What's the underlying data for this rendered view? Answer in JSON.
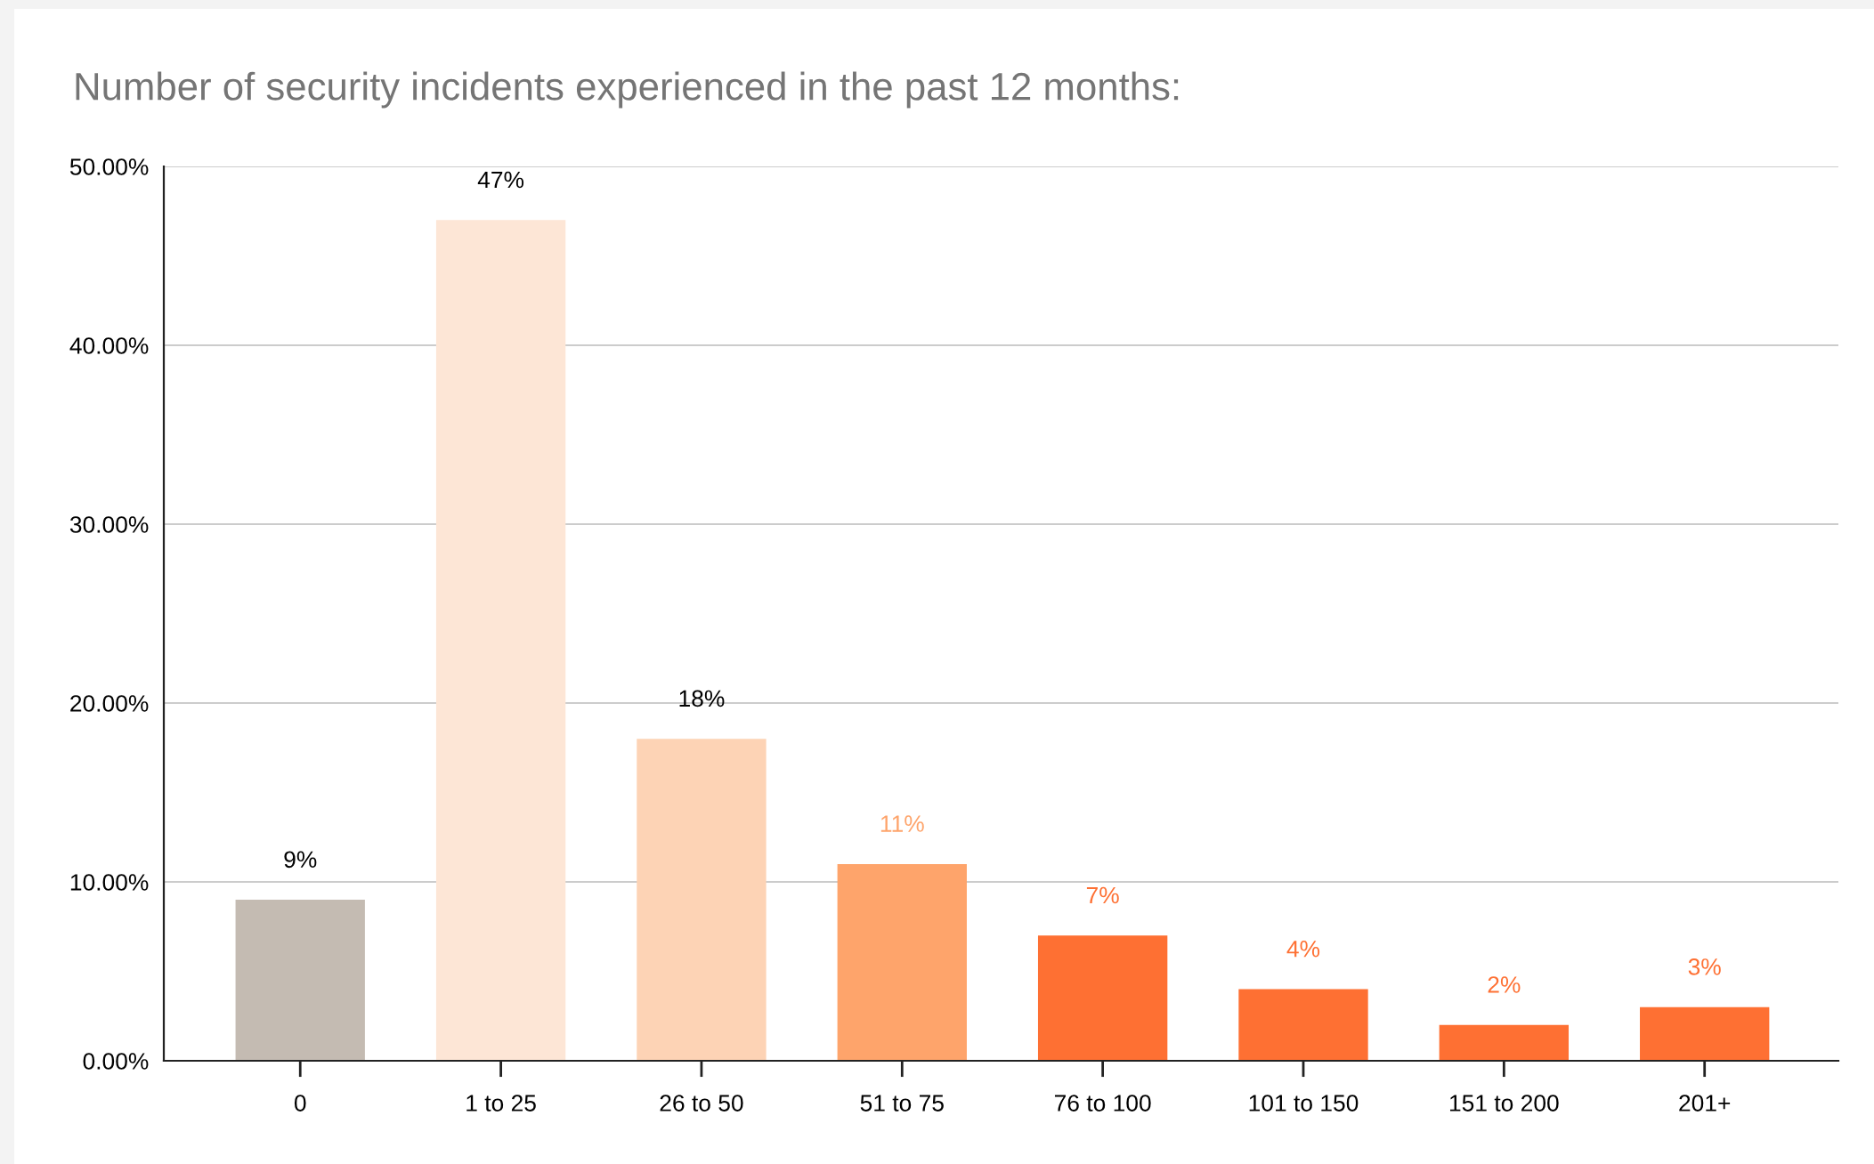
{
  "chart_data": {
    "type": "bar",
    "title": "Number of security incidents experienced in the past 12 months:",
    "categories": [
      "0",
      "1 to 25",
      "26 to 50",
      "51 to 75",
      "76 to 100",
      "101 to 150",
      "151 to 200",
      "201+"
    ],
    "values": [
      9,
      47,
      18,
      11,
      7,
      4,
      2,
      3
    ],
    "colors": [
      "#c4bbb2",
      "#fde6d6",
      "#fdd3b5",
      "#fea46b",
      "#fe7033",
      "#fe7033",
      "#fe7033",
      "#fe7033"
    ],
    "value_labels": [
      "9%",
      "47%",
      "18%",
      "11%",
      "7%",
      "4%",
      "2%",
      "3%"
    ],
    "ylim": [
      0,
      50
    ],
    "yticks": [
      {
        "value": 0,
        "label": "0.00%"
      },
      {
        "value": 10,
        "label": "10.00%"
      },
      {
        "value": 20,
        "label": "20.00%"
      },
      {
        "value": 30,
        "label": "30.00%"
      },
      {
        "value": 40,
        "label": "40.00%"
      },
      {
        "value": 50,
        "label": "50.00%"
      }
    ],
    "grid": "y",
    "legend": false
  }
}
